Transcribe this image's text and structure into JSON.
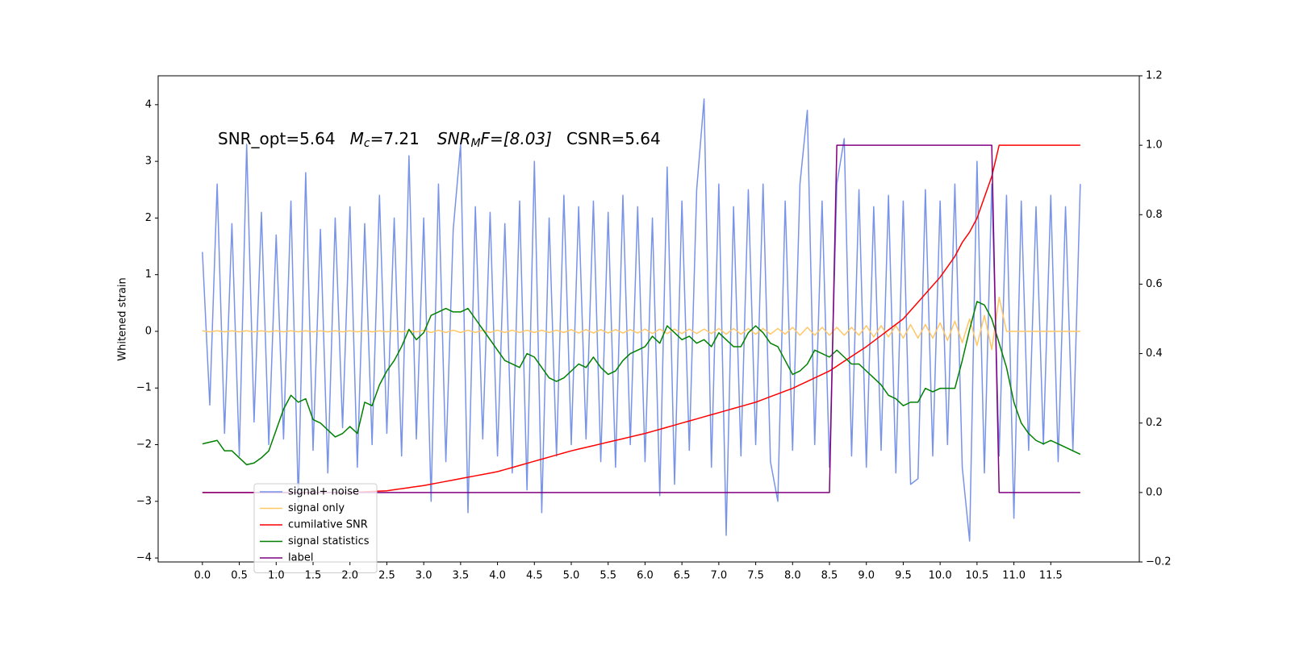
{
  "chart_data": {
    "type": "line",
    "y_label": "Whitened strain",
    "annotation": [
      "SNR_opt=5.64",
      "M",
      "c",
      "=7.21",
      "SNR",
      "M",
      "F=[8.03]",
      "CSNR=5.64"
    ],
    "xlim": [
      -0.6,
      12.7
    ],
    "ylim": [
      -4.07,
      4.51
    ],
    "y2lim": [
      -0.2,
      1.2
    ],
    "xticks": [
      {
        "value": 0,
        "label": "0.0"
      },
      0.5,
      {
        "value": 1,
        "label": "1.0"
      },
      1.5,
      {
        "value": 2,
        "label": "2.0"
      },
      2.5,
      {
        "value": 3,
        "label": "3.0"
      },
      3.5,
      {
        "value": 4,
        "label": "4.0"
      },
      4.5,
      {
        "value": 5,
        "label": "5.0"
      },
      5.5,
      {
        "value": 6,
        "label": "6.0"
      },
      6.5,
      {
        "value": 7,
        "label": "7.0"
      },
      7.5,
      {
        "value": 8,
        "label": "8.0"
      },
      8.5,
      {
        "value": 9,
        "label": "9.0"
      },
      9.5,
      {
        "value": 10,
        "label": "10.0"
      },
      10.5,
      {
        "value": 11,
        "label": "11.0"
      },
      11.5
    ],
    "yticks": [
      {
        "value": -4,
        "label": "−4"
      },
      {
        "value": -3,
        "label": "−3"
      },
      {
        "value": -2,
        "label": "−2"
      },
      {
        "value": -1,
        "label": "−1"
      },
      0,
      1,
      2,
      3,
      4
    ],
    "y2ticks": [
      {
        "value": -0.2,
        "label": "−0.2"
      },
      {
        "value": 0,
        "label": "0.0"
      },
      0.2,
      0.4,
      0.6,
      0.8,
      {
        "value": 1,
        "label": "1.0"
      },
      1.2
    ],
    "grid": false,
    "legend": "lower left",
    "x": [
      0.0,
      0.1,
      0.2,
      0.3,
      0.4,
      0.5,
      0.6,
      0.7,
      0.8,
      0.9,
      1.0,
      1.1,
      1.2,
      1.3,
      1.4,
      1.5,
      1.6,
      1.7,
      1.8,
      1.9,
      2.0,
      2.1,
      2.2,
      2.3,
      2.4,
      2.5,
      2.6,
      2.7,
      2.8,
      2.9,
      3.0,
      3.1,
      3.2,
      3.3,
      3.4,
      3.5,
      3.6,
      3.7,
      3.8,
      3.9,
      4.0,
      4.1,
      4.2,
      4.3,
      4.4,
      4.5,
      4.6,
      4.7,
      4.8,
      4.9,
      5.0,
      5.1,
      5.2,
      5.3,
      5.4,
      5.5,
      5.6,
      5.7,
      5.8,
      5.9,
      6.0,
      6.1,
      6.2,
      6.3,
      6.4,
      6.5,
      6.6,
      6.7,
      6.8,
      6.9,
      7.0,
      7.1,
      7.2,
      7.3,
      7.4,
      7.5,
      7.6,
      7.7,
      7.8,
      7.9,
      8.0,
      8.1,
      8.2,
      8.3,
      8.4,
      8.5,
      8.6,
      8.7,
      8.8,
      8.9,
      9.0,
      9.1,
      9.2,
      9.3,
      9.4,
      9.5,
      9.6,
      9.7,
      9.8,
      9.9,
      10.0,
      10.1,
      10.2,
      10.3,
      10.4,
      10.5,
      10.6,
      10.7,
      10.8,
      10.9,
      11.0,
      11.1,
      11.2,
      11.3,
      11.4,
      11.5,
      11.6,
      11.7,
      11.8,
      11.9
    ],
    "series": [
      {
        "name": "signal+ noise",
        "color": "#7893e8",
        "axis": "y",
        "values": [
          1.4,
          -1.3,
          2.6,
          -1.8,
          1.9,
          -2.2,
          3.3,
          -1.6,
          2.1,
          -2.0,
          1.7,
          -1.9,
          2.3,
          -3.0,
          2.8,
          -2.1,
          1.8,
          -2.5,
          2.0,
          -1.7,
          2.2,
          -2.4,
          1.9,
          -2.0,
          2.4,
          -1.8,
          2.0,
          -2.2,
          3.1,
          -1.9,
          2.0,
          -3.0,
          2.6,
          -2.3,
          1.8,
          3.3,
          -3.2,
          2.2,
          -1.9,
          2.1,
          -2.2,
          1.9,
          -2.5,
          2.3,
          -2.8,
          3.0,
          -3.2,
          2.0,
          -2.2,
          2.4,
          -2.0,
          2.2,
          -1.9,
          2.3,
          -2.3,
          2.1,
          -2.4,
          2.4,
          -2.0,
          2.2,
          -2.3,
          2.0,
          -2.9,
          2.9,
          -2.7,
          2.3,
          -2.1,
          2.5,
          4.1,
          -2.4,
          2.6,
          -3.6,
          2.2,
          -2.2,
          2.5,
          -2.0,
          2.6,
          -2.3,
          -3.0,
          2.3,
          -2.1,
          2.6,
          3.9,
          -2.0,
          2.3,
          -2.4,
          2.6,
          3.4,
          -2.2,
          2.5,
          -2.4,
          2.2,
          -2.1,
          2.4,
          -2.5,
          2.3,
          -2.7,
          -2.6,
          2.5,
          -2.2,
          2.3,
          -2.0,
          2.6,
          -2.4,
          -3.7,
          3.0,
          -2.5,
          2.6,
          -2.2,
          2.4,
          -3.3,
          2.3,
          -2.1,
          2.2,
          -2.0,
          2.4,
          -2.3,
          2.2,
          -2.1,
          2.6
        ]
      },
      {
        "name": "signal only",
        "color": "#ffc766",
        "axis": "y",
        "values": [
          0.01,
          -0.01,
          0.01,
          -0.01,
          0.01,
          -0.01,
          0.01,
          -0.01,
          0.01,
          -0.01,
          0.01,
          -0.01,
          0.01,
          -0.01,
          0.01,
          -0.01,
          0.01,
          -0.01,
          0.01,
          -0.01,
          0.01,
          -0.01,
          0.01,
          -0.01,
          0.01,
          -0.01,
          0.01,
          -0.01,
          0.01,
          -0.01,
          0.02,
          -0.02,
          0.02,
          -0.02,
          0.02,
          -0.02,
          0.02,
          -0.02,
          0.02,
          -0.02,
          0.02,
          -0.02,
          0.02,
          -0.02,
          0.02,
          -0.02,
          0.02,
          -0.02,
          0.02,
          -0.02,
          0.03,
          -0.03,
          0.03,
          -0.03,
          0.03,
          -0.03,
          0.03,
          -0.03,
          0.03,
          -0.03,
          0.04,
          -0.04,
          0.04,
          -0.04,
          0.04,
          -0.04,
          0.04,
          -0.04,
          0.04,
          -0.04,
          0.05,
          -0.05,
          0.05,
          -0.05,
          0.05,
          -0.05,
          0.05,
          -0.05,
          0.05,
          -0.05,
          0.07,
          -0.07,
          0.07,
          -0.07,
          0.07,
          -0.07,
          0.07,
          -0.07,
          0.07,
          -0.07,
          0.1,
          -0.1,
          0.1,
          -0.1,
          0.1,
          -0.12,
          0.12,
          -0.12,
          0.12,
          -0.12,
          0.15,
          -0.16,
          0.18,
          -0.2,
          0.22,
          -0.25,
          0.28,
          -0.32,
          0.6,
          0,
          0,
          0,
          0,
          0,
          0,
          0,
          0,
          0,
          0,
          0
        ]
      },
      {
        "name": "cumilative SNR",
        "color": "#ff0000",
        "axis": "y2",
        "values": [
          0,
          0,
          0,
          0,
          0,
          0,
          0,
          0,
          0,
          0,
          0,
          0,
          0,
          0,
          0,
          0,
          0,
          0,
          0,
          0,
          0,
          0.001,
          0.002,
          0.003,
          0.004,
          0.005,
          0.008,
          0.011,
          0.014,
          0.017,
          0.02,
          0.024,
          0.028,
          0.032,
          0.036,
          0.04,
          0.044,
          0.048,
          0.052,
          0.056,
          0.06,
          0.066,
          0.072,
          0.078,
          0.084,
          0.09,
          0.096,
          0.102,
          0.108,
          0.114,
          0.12,
          0.125,
          0.13,
          0.135,
          0.14,
          0.145,
          0.15,
          0.155,
          0.16,
          0.165,
          0.17,
          0.176,
          0.182,
          0.188,
          0.194,
          0.2,
          0.206,
          0.212,
          0.218,
          0.224,
          0.23,
          0.236,
          0.242,
          0.248,
          0.254,
          0.26,
          0.268,
          0.276,
          0.284,
          0.292,
          0.3,
          0.31,
          0.32,
          0.33,
          0.34,
          0.35,
          0.364,
          0.378,
          0.392,
          0.406,
          0.42,
          0.436,
          0.452,
          0.468,
          0.484,
          0.5,
          0.524,
          0.548,
          0.572,
          0.596,
          0.62,
          0.65,
          0.68,
          0.72,
          0.75,
          0.79,
          0.85,
          0.91,
          1,
          1,
          1,
          1,
          1,
          1,
          1,
          1,
          1,
          1,
          1,
          1
        ]
      },
      {
        "name": "signal statistics",
        "color": "#008000",
        "axis": "y2",
        "values": [
          0.14,
          0.145,
          0.15,
          0.12,
          0.12,
          0.1,
          0.08,
          0.085,
          0.1,
          0.12,
          0.18,
          0.24,
          0.28,
          0.26,
          0.27,
          0.21,
          0.2,
          0.18,
          0.16,
          0.17,
          0.19,
          0.17,
          0.26,
          0.25,
          0.31,
          0.35,
          0.38,
          0.42,
          0.47,
          0.44,
          0.46,
          0.51,
          0.52,
          0.53,
          0.52,
          0.52,
          0.53,
          0.5,
          0.47,
          0.44,
          0.41,
          0.38,
          0.37,
          0.36,
          0.4,
          0.39,
          0.36,
          0.33,
          0.32,
          0.33,
          0.35,
          0.37,
          0.36,
          0.39,
          0.36,
          0.34,
          0.35,
          0.38,
          0.4,
          0.41,
          0.42,
          0.45,
          0.43,
          0.48,
          0.46,
          0.44,
          0.45,
          0.43,
          0.44,
          0.42,
          0.46,
          0.44,
          0.42,
          0.42,
          0.46,
          0.48,
          0.46,
          0.43,
          0.42,
          0.38,
          0.34,
          0.35,
          0.37,
          0.41,
          0.4,
          0.39,
          0.41,
          0.39,
          0.37,
          0.37,
          0.35,
          0.33,
          0.31,
          0.28,
          0.27,
          0.25,
          0.26,
          0.26,
          0.3,
          0.29,
          0.3,
          0.3,
          0.3,
          0.38,
          0.47,
          0.55,
          0.54,
          0.5,
          0.43,
          0.36,
          0.26,
          0.2,
          0.17,
          0.15,
          0.14,
          0.15,
          0.14,
          0.13,
          0.12,
          0.11
        ]
      },
      {
        "name": "label",
        "color": "#800080",
        "axis": "y2",
        "values": [
          0,
          0,
          0,
          0,
          0,
          0,
          0,
          0,
          0,
          0,
          0,
          0,
          0,
          0,
          0,
          0,
          0,
          0,
          0,
          0,
          0,
          0,
          0,
          0,
          0,
          0,
          0,
          0,
          0,
          0,
          0,
          0,
          0,
          0,
          0,
          0,
          0,
          0,
          0,
          0,
          0,
          0,
          0,
          0,
          0,
          0,
          0,
          0,
          0,
          0,
          0,
          0,
          0,
          0,
          0,
          0,
          0,
          0,
          0,
          0,
          0,
          0,
          0,
          0,
          0,
          0,
          0,
          0,
          0,
          0,
          0,
          0,
          0,
          0,
          0,
          0,
          0,
          0,
          0,
          0,
          0,
          0,
          0,
          0,
          0,
          0,
          1,
          1,
          1,
          1,
          1,
          1,
          1,
          1,
          1,
          1,
          1,
          1,
          1,
          1,
          1,
          1,
          1,
          1,
          1,
          1,
          1,
          1,
          0,
          0,
          0,
          0,
          0,
          0,
          0,
          0,
          0,
          0,
          0,
          0
        ]
      }
    ]
  }
}
